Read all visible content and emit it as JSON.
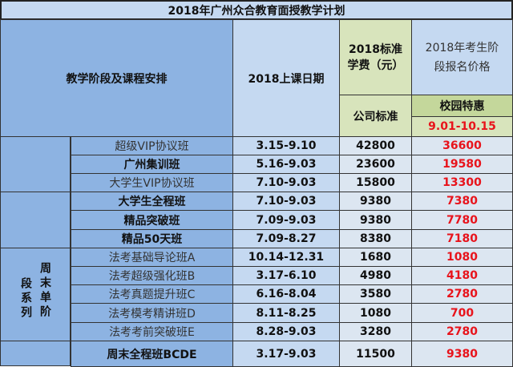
{
  "title": "2018年广州众合教育面授教学计划",
  "header": {
    "course": "教学阶段及课程安排",
    "date": "2018上课日期",
    "std_fee": "2018标准学费（元）",
    "company_std": "公司标准",
    "stage_price": "2018年考生阶段报名价格",
    "campus_offer": "校园特惠",
    "offer_period": "9.01-10.15"
  },
  "group_label_col1": "周末单阶",
  "group_label_col2": "段系列",
  "rows": [
    {
      "name": "超级VIP协议班",
      "date": "3.15-9.10",
      "std": "42800",
      "price": "36600"
    },
    {
      "name": "广州集训班",
      "date": "5.16-9.03",
      "std": "23600",
      "price": "19580"
    },
    {
      "name": "大学生VIP协议班",
      "date": "7.10-9.03",
      "std": "15800",
      "price": "13300"
    },
    {
      "name": "大学生全程班",
      "date": "7.10-9.03",
      "std": "9380",
      "price": "7380"
    },
    {
      "name": "精品突破班",
      "date": "7.09-9.03",
      "std": "9380",
      "price": "7780"
    },
    {
      "name": "精品50天班",
      "date": "7.09-8.27",
      "std": "8380",
      "price": "7180"
    },
    {
      "name": "法考基础导论班A",
      "date": "10.14-12.31",
      "std": "1680",
      "price": "1080"
    },
    {
      "name": "法考超级强化班B",
      "date": "3.17-6.10",
      "std": "4980",
      "price": "4180"
    },
    {
      "name": "法考真题提升班C",
      "date": "6.16-8.04",
      "std": "3580",
      "price": "2780"
    },
    {
      "name": "法考模考精讲班D",
      "date": "8.11-8.25",
      "std": "1080",
      "price": "700"
    },
    {
      "name": "法考考前突破班E",
      "date": "8.28-9.03",
      "std": "3280",
      "price": "2780"
    },
    {
      "name": "周末全程班BCDE",
      "date": "3.17-9.03",
      "std": "11500",
      "price": "9380"
    }
  ]
}
